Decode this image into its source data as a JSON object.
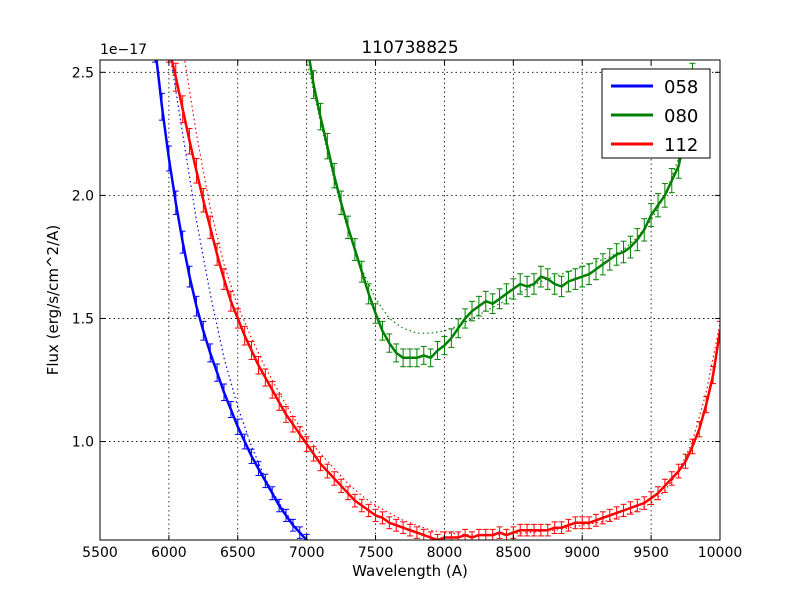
{
  "chart_data": {
    "type": "line",
    "title": "110738825",
    "xlabel": "Wavelength (A)",
    "ylabel": "Flux (erg/s/cm^2/A)",
    "offset_label": "1e−17",
    "xlim": [
      5500,
      10000
    ],
    "ylim": [
      0.6,
      2.55
    ],
    "xticks": [
      5500,
      6000,
      6500,
      7000,
      7500,
      8000,
      8500,
      9000,
      9500,
      10000
    ],
    "xtick_labels": [
      "5500",
      "6000",
      "6500",
      "7000",
      "7500",
      "8000",
      "8500",
      "9000",
      "9500",
      "10000"
    ],
    "yticks": [
      1.0,
      1.5,
      2.0,
      2.5
    ],
    "ytick_labels": [
      "1.0",
      "1.5",
      "2.0",
      "2.5"
    ],
    "grid": true,
    "legend_position": "top-right",
    "series": [
      {
        "name": "058",
        "color": "#0000ff",
        "errorbars": true,
        "x": [
          5900,
          5950,
          6000,
          6050,
          6100,
          6150,
          6200,
          6250,
          6300,
          6350,
          6400,
          6450,
          6500,
          6550,
          6600,
          6650,
          6700,
          6750,
          6800,
          6850,
          6900,
          6950,
          7000,
          7050
        ],
        "y": [
          2.6,
          2.36,
          2.15,
          1.97,
          1.81,
          1.67,
          1.55,
          1.45,
          1.36,
          1.28,
          1.2,
          1.13,
          1.06,
          1.0,
          0.94,
          0.89,
          0.84,
          0.79,
          0.74,
          0.7,
          0.66,
          0.63,
          0.6,
          0.56
        ],
        "model_x": [
          6000,
          6100,
          6200,
          6300,
          6400,
          6500,
          6600,
          6700,
          6800,
          6900,
          7000,
          7100
        ],
        "model_y": [
          2.6,
          2.25,
          1.9,
          1.6,
          1.34,
          1.14,
          0.98,
          0.85,
          0.75,
          0.67,
          0.6,
          0.55
        ]
      },
      {
        "name": "080",
        "color": "#008000",
        "errorbars": true,
        "x": [
          7000,
          7050,
          7100,
          7150,
          7200,
          7250,
          7300,
          7350,
          7400,
          7450,
          7500,
          7550,
          7600,
          7650,
          7700,
          7750,
          7800,
          7850,
          7900,
          7950,
          8000,
          8050,
          8100,
          8150,
          8200,
          8250,
          8300,
          8350,
          8400,
          8450,
          8500,
          8550,
          8600,
          8650,
          8700,
          8750,
          8800,
          8850,
          8900,
          8950,
          9000,
          9050,
          9100,
          9150,
          9200,
          9250,
          9300,
          9350,
          9400,
          9450,
          9500,
          9550,
          9600,
          9650,
          9700,
          9750,
          9800
        ],
        "y": [
          2.62,
          2.45,
          2.32,
          2.2,
          2.08,
          1.97,
          1.87,
          1.78,
          1.69,
          1.6,
          1.52,
          1.45,
          1.4,
          1.36,
          1.34,
          1.34,
          1.34,
          1.35,
          1.34,
          1.37,
          1.39,
          1.42,
          1.46,
          1.5,
          1.53,
          1.55,
          1.57,
          1.56,
          1.58,
          1.6,
          1.62,
          1.64,
          1.63,
          1.64,
          1.67,
          1.66,
          1.64,
          1.63,
          1.65,
          1.66,
          1.67,
          1.68,
          1.7,
          1.72,
          1.74,
          1.76,
          1.77,
          1.79,
          1.82,
          1.86,
          1.92,
          1.96,
          2.0,
          2.06,
          2.12,
          2.25,
          2.48
        ],
        "model_x": [
          7000,
          7100,
          7200,
          7300,
          7400,
          7500,
          7600,
          7700,
          7800,
          7900,
          8000,
          8100,
          8200,
          8300,
          8400,
          8500,
          8600,
          8700,
          8800,
          8900,
          9000,
          9100,
          9200,
          9300,
          9400,
          9500,
          9600,
          9700,
          9800
        ],
        "model_y": [
          2.55,
          2.3,
          2.06,
          1.86,
          1.7,
          1.58,
          1.5,
          1.46,
          1.44,
          1.44,
          1.45,
          1.47,
          1.5,
          1.53,
          1.56,
          1.59,
          1.62,
          1.65,
          1.67,
          1.69,
          1.71,
          1.73,
          1.75,
          1.78,
          1.83,
          1.9,
          2.0,
          2.15,
          2.4
        ]
      },
      {
        "name": "112",
        "color": "#ff0000",
        "errorbars": true,
        "x": [
          6000,
          6050,
          6100,
          6150,
          6200,
          6250,
          6300,
          6350,
          6400,
          6450,
          6500,
          6550,
          6600,
          6650,
          6700,
          6750,
          6800,
          6850,
          6900,
          6950,
          7000,
          7050,
          7100,
          7150,
          7200,
          7250,
          7300,
          7350,
          7400,
          7450,
          7500,
          7550,
          7600,
          7650,
          7700,
          7750,
          7800,
          7850,
          7900,
          7950,
          8000,
          8050,
          8100,
          8150,
          8200,
          8250,
          8300,
          8350,
          8400,
          8450,
          8500,
          8550,
          8600,
          8650,
          8700,
          8750,
          8800,
          8850,
          8900,
          8950,
          9000,
          9050,
          9100,
          9150,
          9200,
          9250,
          9300,
          9350,
          9400,
          9450,
          9500,
          9550,
          9600,
          9650,
          9700,
          9750,
          9800,
          9850,
          9900,
          9950,
          10000
        ],
        "y": [
          2.6,
          2.48,
          2.35,
          2.22,
          2.1,
          1.98,
          1.87,
          1.76,
          1.66,
          1.57,
          1.5,
          1.43,
          1.37,
          1.31,
          1.26,
          1.21,
          1.16,
          1.11,
          1.07,
          1.03,
          0.99,
          0.95,
          0.91,
          0.88,
          0.85,
          0.82,
          0.79,
          0.76,
          0.74,
          0.72,
          0.7,
          0.69,
          0.67,
          0.66,
          0.65,
          0.64,
          0.63,
          0.62,
          0.61,
          0.6,
          0.61,
          0.61,
          0.61,
          0.62,
          0.61,
          0.62,
          0.62,
          0.62,
          0.63,
          0.62,
          0.63,
          0.64,
          0.64,
          0.64,
          0.64,
          0.64,
          0.65,
          0.65,
          0.66,
          0.67,
          0.67,
          0.67,
          0.68,
          0.69,
          0.7,
          0.71,
          0.72,
          0.73,
          0.74,
          0.75,
          0.77,
          0.79,
          0.82,
          0.85,
          0.88,
          0.92,
          0.98,
          1.05,
          1.15,
          1.27,
          1.45
        ],
        "model_x": [
          6100,
          6200,
          6300,
          6400,
          6500,
          6600,
          6700,
          6800,
          6900,
          7000,
          7100,
          7200,
          7300,
          7400,
          7500,
          7600,
          7700,
          7800,
          7900,
          8000,
          8200,
          8400,
          8600,
          8800,
          9000,
          9200,
          9400,
          9500,
          9600,
          9700,
          9800,
          9900,
          10000
        ],
        "model_y": [
          2.6,
          2.25,
          1.95,
          1.72,
          1.55,
          1.42,
          1.3,
          1.2,
          1.1,
          1.02,
          0.95,
          0.89,
          0.83,
          0.78,
          0.74,
          0.71,
          0.68,
          0.66,
          0.64,
          0.63,
          0.62,
          0.62,
          0.63,
          0.64,
          0.66,
          0.68,
          0.72,
          0.75,
          0.8,
          0.88,
          1.0,
          1.2,
          1.48
        ]
      }
    ]
  }
}
